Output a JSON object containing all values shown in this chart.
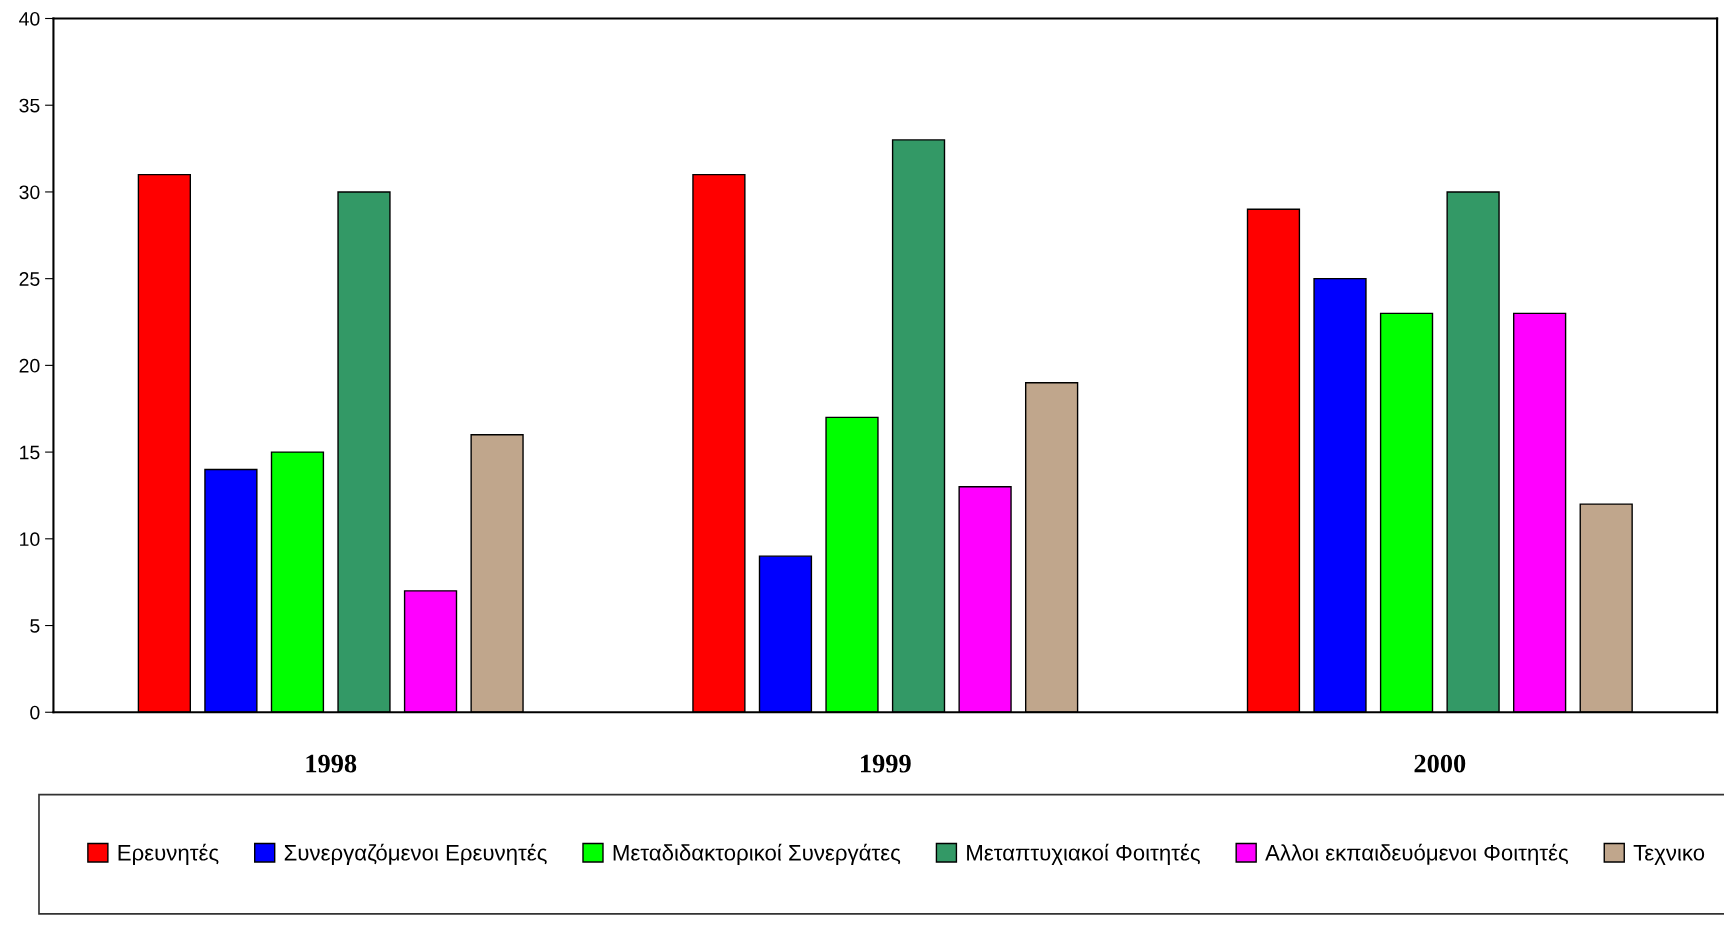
{
  "chart_data": {
    "type": "bar",
    "categories": [
      "1998",
      "1999",
      "2000"
    ],
    "series": [
      {
        "name": "Ερευνητές",
        "color": "#ff0000",
        "values": [
          31,
          31,
          29
        ]
      },
      {
        "name": "Συνεργαζόμενοι Ερευνητές",
        "color": "#0000ff",
        "values": [
          14,
          9,
          25
        ]
      },
      {
        "name": "Μεταδιδακτορικοί Συνεργάτες",
        "color": "#00ff00",
        "values": [
          15,
          17,
          23
        ]
      },
      {
        "name": "Μεταπτυχιακοί Φοιτητές",
        "color": "#339966",
        "values": [
          30,
          33,
          30
        ]
      },
      {
        "name": "Αλλοι εκπαιδευόμενοι Φοιτητές",
        "color": "#ff00ff",
        "values": [
          7,
          13,
          23
        ]
      },
      {
        "name": "Τεχνικο",
        "color": "#c0a68c",
        "values": [
          16,
          19,
          12
        ]
      }
    ],
    "ylim": [
      0,
      40
    ],
    "yticks": [
      0,
      5,
      10,
      15,
      20,
      25,
      30,
      35,
      40
    ],
    "grid": false,
    "legend": "bottom"
  }
}
